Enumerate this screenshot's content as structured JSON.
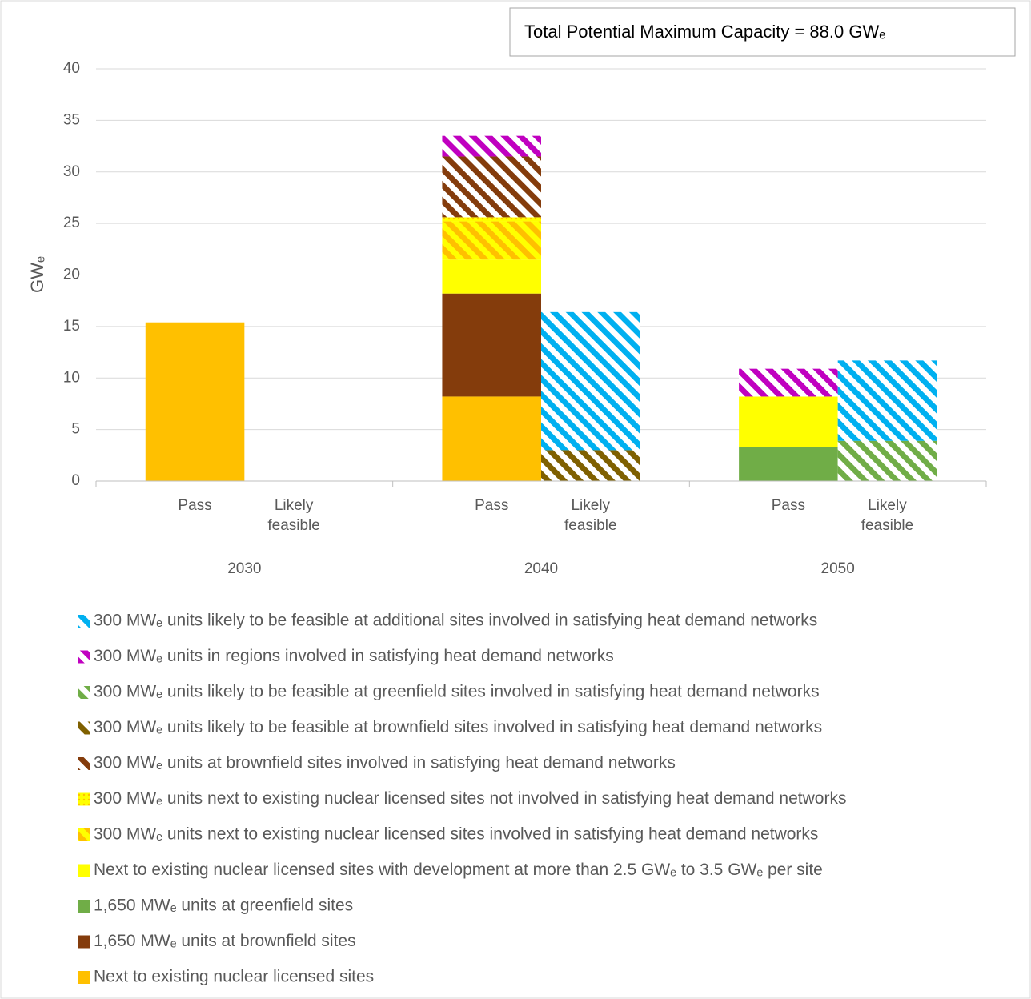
{
  "chart_data": {
    "type": "bar",
    "stacked": true,
    "annotation": "Total Potential Maximum Capacity = 88.0 GWₑ",
    "y_label": "GWₑ",
    "groups": [
      "2030",
      "2040",
      "2050"
    ],
    "categories": [
      "Pass",
      "Likely feasible",
      "Pass",
      "Likely feasible",
      "Pass",
      "Likely feasible"
    ],
    "ylim": [
      0,
      40
    ],
    "yticks": [
      0,
      5,
      10,
      15,
      20,
      25,
      30,
      35,
      40
    ],
    "grid": true,
    "legend": "bottom",
    "series": [
      {
        "name": "Next to existing nuclear licensed sites",
        "color": "#ffc000",
        "fill_style": "solid",
        "values": [
          15.4,
          null,
          8.2,
          null,
          null,
          null
        ]
      },
      {
        "name": "1,650 MWₑ units at brownfield sites",
        "color": "#843c0c",
        "fill_style": "solid",
        "values": [
          null,
          null,
          10.0,
          null,
          null,
          null
        ]
      },
      {
        "name": "1,650 MWₑ units at greenfield sites",
        "color": "#70ad47",
        "fill_style": "solid",
        "values": [
          null,
          null,
          null,
          null,
          3.3,
          null
        ]
      },
      {
        "name": "Next to existing nuclear licensed sites with development at more than 2.5 GWₑ to 3.5 GWₑ per site",
        "color": "#ffff00",
        "fill_style": "solid",
        "values": [
          null,
          null,
          3.3,
          null,
          4.9,
          null
        ]
      },
      {
        "name": "300 MWₑ units next to existing nuclear licensed sites involved in satisfying heat demand networks",
        "color": "#ffc000",
        "background": "#ffff00",
        "fill_style": "hatch",
        "values": [
          null,
          null,
          3.7,
          null,
          null,
          null
        ]
      },
      {
        "name": "300 MWₑ units next to existing nuclear licensed sites not involved in satisfying heat demand networks",
        "color": "#ffc000",
        "background": "#ffff00",
        "fill_style": "dots",
        "values": [
          null,
          null,
          0.4,
          null,
          null,
          null
        ]
      },
      {
        "name": "300 MWₑ units at brownfield sites involved in satisfying heat demand networks",
        "color": "#843c0c",
        "fill_style": "hatch",
        "values": [
          null,
          null,
          5.9,
          null,
          null,
          null
        ]
      },
      {
        "name": "300 MWₑ units likely to be feasible at brownfield sites involved in satisfying heat demand networks",
        "color": "#7f6000",
        "fill_style": "hatch",
        "values": [
          null,
          null,
          null,
          3.0,
          null,
          null
        ]
      },
      {
        "name": "300 MWₑ units likely to be feasible at greenfield sites involved in satisfying heat demand networks",
        "color": "#70ad47",
        "fill_style": "hatch",
        "values": [
          null,
          null,
          null,
          null,
          null,
          3.9
        ]
      },
      {
        "name": "300 MWₑ units in regions involved in satisfying heat demand networks",
        "color": "#c000c0",
        "fill_style": "hatch",
        "values": [
          null,
          null,
          2.0,
          null,
          2.7,
          null
        ]
      },
      {
        "name": "300 MWₑ units likely to be feasible at additional sites involved in satisfying heat demand networks",
        "color": "#00b0f0",
        "fill_style": "hatch",
        "values": [
          null,
          null,
          null,
          13.4,
          null,
          7.8
        ]
      }
    ]
  }
}
